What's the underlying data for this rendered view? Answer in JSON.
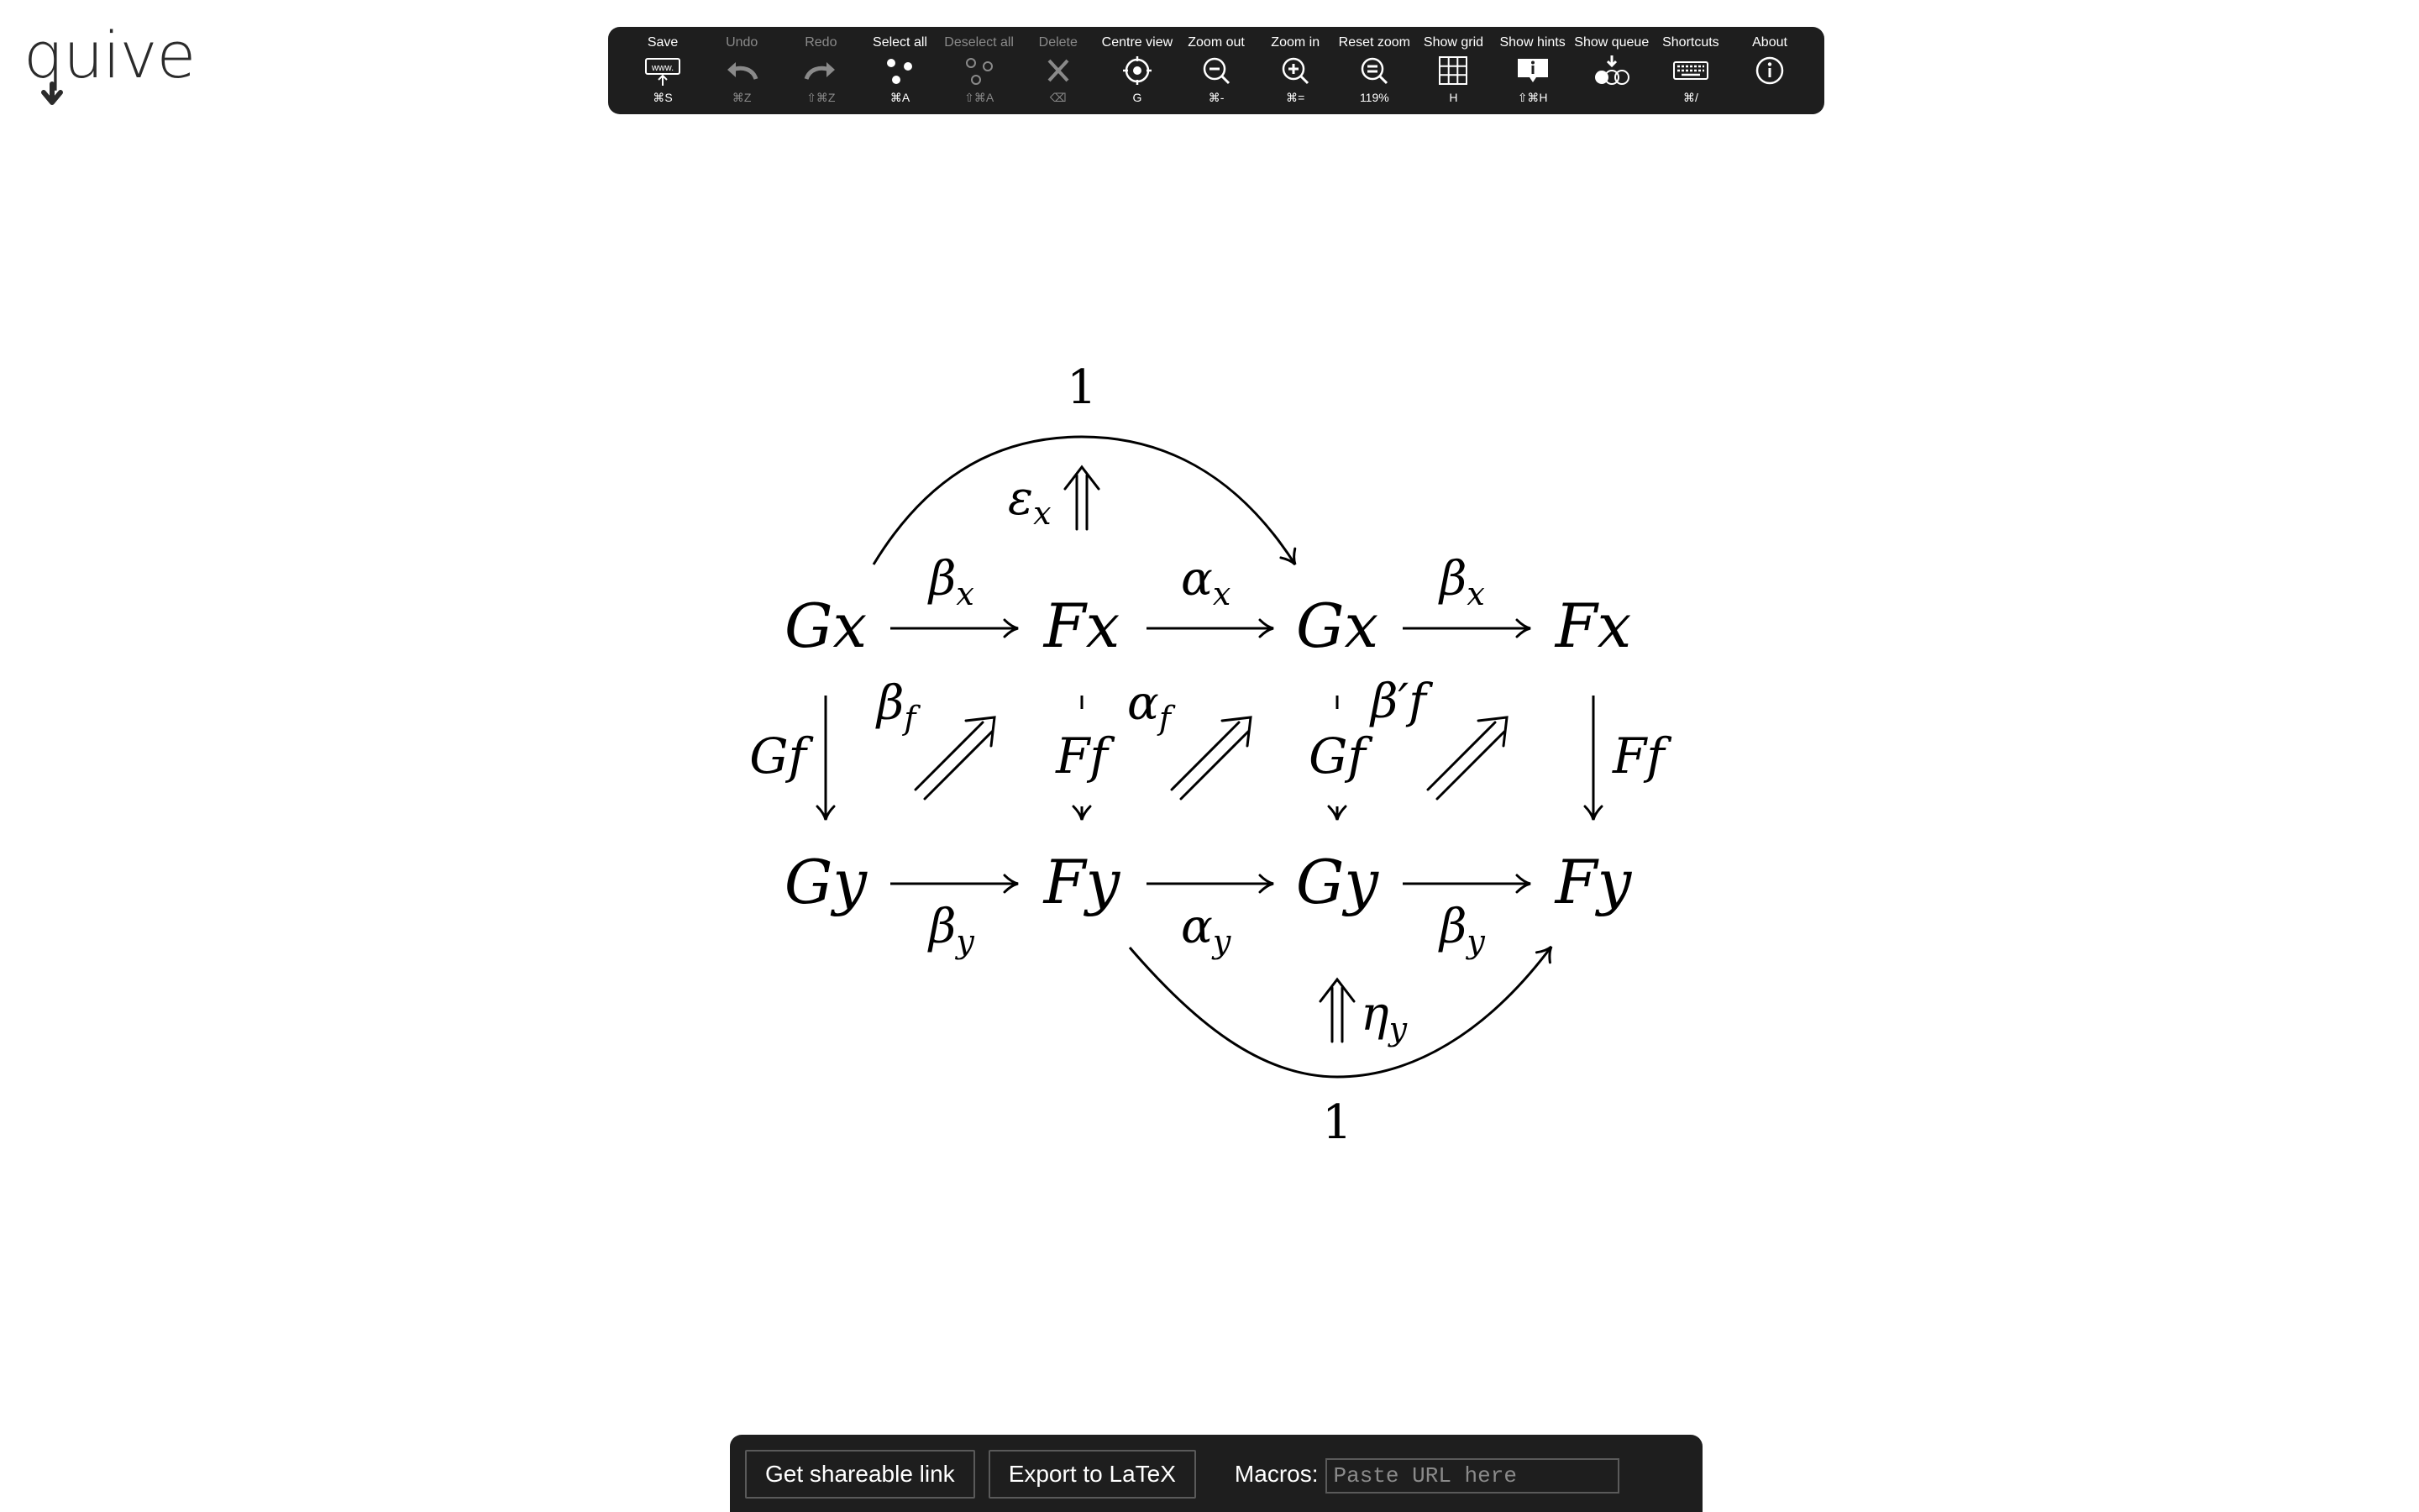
{
  "app": {
    "logo": "quiver"
  },
  "toolbar": {
    "items": [
      {
        "label": "Save",
        "key": "⌘S",
        "icon": "save-link-icon",
        "enabled": true
      },
      {
        "label": "Undo",
        "key": "⌘Z",
        "icon": "undo-icon",
        "enabled": false
      },
      {
        "label": "Redo",
        "key": "⇧⌘Z",
        "icon": "redo-icon",
        "enabled": false
      },
      {
        "label": "Select all",
        "key": "⌘A",
        "icon": "select-all-icon",
        "enabled": true
      },
      {
        "label": "Deselect all",
        "key": "⇧⌘A",
        "icon": "deselect-all-icon",
        "enabled": false
      },
      {
        "label": "Delete",
        "key": "⌫",
        "icon": "delete-icon",
        "enabled": false
      },
      {
        "label": "Centre view",
        "key": "G",
        "icon": "centre-view-icon",
        "enabled": true
      },
      {
        "label": "Zoom out",
        "key": "⌘-",
        "icon": "zoom-out-icon",
        "enabled": true
      },
      {
        "label": "Zoom in",
        "key": "⌘=",
        "icon": "zoom-in-icon",
        "enabled": true
      },
      {
        "label": "Reset zoom",
        "key": "119%",
        "icon": "reset-zoom-icon",
        "enabled": true
      },
      {
        "label": "Show grid",
        "key": "H",
        "icon": "grid-icon",
        "enabled": true
      },
      {
        "label": "Show hints",
        "key": "⇧⌘H",
        "icon": "hints-icon",
        "enabled": true
      },
      {
        "label": "Show queue",
        "key": "",
        "icon": "queue-icon",
        "enabled": true
      },
      {
        "label": "Shortcuts",
        "key": "⌘/",
        "icon": "keyboard-icon",
        "enabled": true
      },
      {
        "label": "About",
        "key": "",
        "icon": "info-icon",
        "enabled": true
      }
    ]
  },
  "diagram": {
    "objects": {
      "gx1": "Gx",
      "fx1": "Fx",
      "gx2": "Gx",
      "fx2": "Fx",
      "gy1": "Gy",
      "fy1": "Fy",
      "gy2": "Gy",
      "fy2": "Fy",
      "top_one": "1",
      "bottom_one": "1"
    },
    "arrow_labels": {
      "beta_x_1": {
        "base": "β",
        "sub": "x"
      },
      "alpha_x": {
        "base": "α",
        "sub": "x"
      },
      "beta_x_2": {
        "base": "β",
        "sub": "x"
      },
      "beta_y_1": {
        "base": "β",
        "sub": "y"
      },
      "alpha_y": {
        "base": "α",
        "sub": "y"
      },
      "beta_y_2": {
        "base": "β",
        "sub": "y"
      },
      "gf_left": "Gf",
      "ff_mid": "Ff",
      "gf_mid": "Gf",
      "ff_right": "Ff",
      "beta_f": {
        "base": "β",
        "sub": "f"
      },
      "alpha_f": {
        "base": "α",
        "sub": "f"
      },
      "beta_prime_f": "β′f",
      "epsilon_x": {
        "base": "ε",
        "sub": "x"
      },
      "eta_y": {
        "base": "η",
        "sub": "y"
      }
    }
  },
  "bottom": {
    "share_label": "Get shareable link",
    "export_label": "Export to LaTeX",
    "macros_label": "Macros:",
    "macros_placeholder": "Paste URL here",
    "macros_value": ""
  }
}
